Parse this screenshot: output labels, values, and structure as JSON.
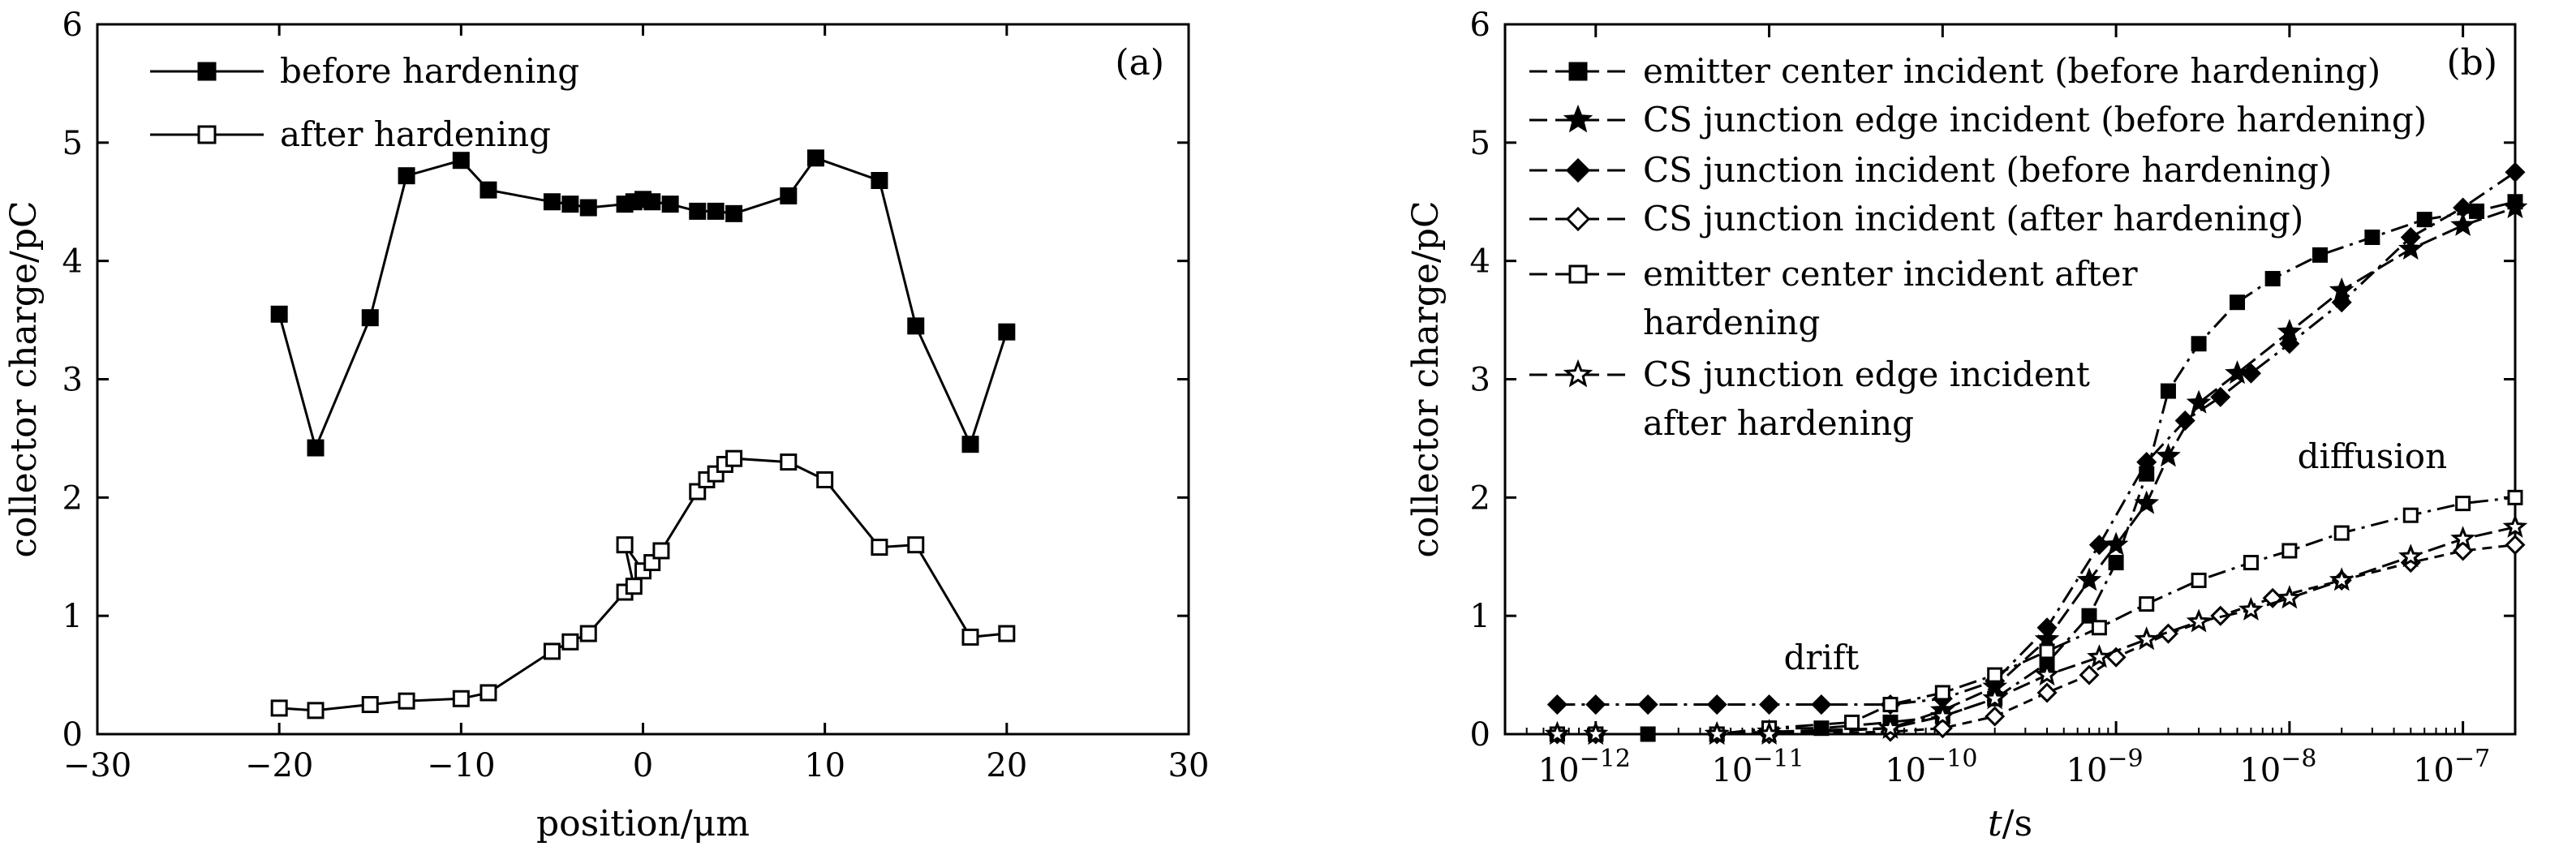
{
  "chart_data": [
    {
      "type": "line",
      "panel_label": "(a)",
      "xlabel": "position/μm",
      "ylabel": "collector charge/pC",
      "xlim": [
        -30,
        30
      ],
      "ylim": [
        0,
        6
      ],
      "xticks": [
        -30,
        -20,
        -10,
        0,
        10,
        20,
        30
      ],
      "xtick_labels": [
        "−30",
        "−20",
        "−10",
        "0",
        "10",
        "20",
        "30"
      ],
      "yticks": [
        0,
        1,
        2,
        3,
        4,
        5,
        6
      ],
      "ytick_labels": [
        "0",
        "1",
        "2",
        "3",
        "4",
        "5",
        "6"
      ],
      "legend_position": "top-left",
      "series": [
        {
          "name": "before hardening",
          "marker": "filled-square",
          "points": [
            [
              -20,
              3.55
            ],
            [
              -18,
              2.42
            ],
            [
              -15,
              3.52
            ],
            [
              -13,
              4.72
            ],
            [
              -10,
              4.85
            ],
            [
              -8.5,
              4.6
            ],
            [
              -5,
              4.5
            ],
            [
              -4,
              4.48
            ],
            [
              -3,
              4.45
            ],
            [
              -1,
              4.48
            ],
            [
              -0.5,
              4.5
            ],
            [
              0,
              4.52
            ],
            [
              0.5,
              4.5
            ],
            [
              1.5,
              4.48
            ],
            [
              3,
              4.42
            ],
            [
              4,
              4.42
            ],
            [
              5,
              4.4
            ],
            [
              8,
              4.55
            ],
            [
              9.5,
              4.87
            ],
            [
              13,
              4.68
            ],
            [
              15,
              3.45
            ],
            [
              18,
              2.45
            ],
            [
              20,
              3.4
            ]
          ]
        },
        {
          "name": "after hardening",
          "marker": "open-square",
          "points": [
            [
              -20,
              0.22
            ],
            [
              -18,
              0.2
            ],
            [
              -15,
              0.25
            ],
            [
              -13,
              0.28
            ],
            [
              -10,
              0.3
            ],
            [
              -8.5,
              0.35
            ],
            [
              -5,
              0.7
            ],
            [
              -4,
              0.78
            ],
            [
              -3,
              0.85
            ],
            [
              -1,
              1.2
            ],
            [
              -0.5,
              1.25
            ],
            [
              -1,
              1.6
            ],
            [
              0,
              1.38
            ],
            [
              0.5,
              1.45
            ],
            [
              1,
              1.55
            ],
            [
              3,
              2.05
            ],
            [
              3.5,
              2.15
            ],
            [
              4,
              2.2
            ],
            [
              4.5,
              2.28
            ],
            [
              5,
              2.33
            ],
            [
              8,
              2.3
            ],
            [
              10,
              2.15
            ],
            [
              13,
              1.58
            ],
            [
              15,
              1.6
            ],
            [
              18,
              0.82
            ],
            [
              20,
              0.85
            ]
          ]
        }
      ]
    },
    {
      "type": "line",
      "panel_label": "(b)",
      "xlabel_italic": "t",
      "xlabel_rest": "/s",
      "ylabel": "collector charge/pC",
      "xscale": "log",
      "xlim": [
        3e-13,
        2e-07
      ],
      "ylim": [
        0,
        6
      ],
      "xtick_exponents": [
        -12,
        -11,
        -10,
        -9,
        -8,
        -7
      ],
      "xtick_base": "10",
      "yticks": [
        0,
        1,
        2,
        3,
        4,
        5,
        6
      ],
      "ytick_labels": [
        "0",
        "1",
        "2",
        "3",
        "4",
        "5",
        "6"
      ],
      "legend_position": "top-left",
      "annotations": [
        {
          "text": "drift",
          "x": 2e-11,
          "y": 0.55
        },
        {
          "text": "diffusion",
          "x": 3e-08,
          "y": 2.25
        }
      ],
      "series": [
        {
          "name": "emitter center incident (before hardening)",
          "marker": "filled-square",
          "points": [
            [
              6e-13,
              0
            ],
            [
              1e-12,
              0
            ],
            [
              2e-12,
              0
            ],
            [
              5e-12,
              0
            ],
            [
              1e-11,
              0.05
            ],
            [
              2e-11,
              0.05
            ],
            [
              5e-11,
              0.1
            ],
            [
              1e-10,
              0.15
            ],
            [
              2e-10,
              0.3
            ],
            [
              4e-10,
              0.6
            ],
            [
              7e-10,
              1.0
            ],
            [
              1e-09,
              1.45
            ],
            [
              1.5e-09,
              2.2
            ],
            [
              2e-09,
              2.9
            ],
            [
              3e-09,
              3.3
            ],
            [
              5e-09,
              3.65
            ],
            [
              8e-09,
              3.85
            ],
            [
              1.5e-08,
              4.05
            ],
            [
              3e-08,
              4.2
            ],
            [
              6e-08,
              4.35
            ],
            [
              1.2e-07,
              4.42
            ],
            [
              2e-07,
              4.5
            ]
          ]
        },
        {
          "name": "CS junction edge incident (before hardening)",
          "marker": "filled-star",
          "points": [
            [
              6e-13,
              0
            ],
            [
              1e-12,
              0
            ],
            [
              5e-12,
              0
            ],
            [
              1e-11,
              0.02
            ],
            [
              5e-11,
              0.05
            ],
            [
              1e-10,
              0.2
            ],
            [
              2e-10,
              0.4
            ],
            [
              4e-10,
              0.8
            ],
            [
              7e-10,
              1.3
            ],
            [
              1e-09,
              1.6
            ],
            [
              1.5e-09,
              1.95
            ],
            [
              2e-09,
              2.35
            ],
            [
              3e-09,
              2.8
            ],
            [
              5e-09,
              3.05
            ],
            [
              1e-08,
              3.4
            ],
            [
              2e-08,
              3.75
            ],
            [
              5e-08,
              4.1
            ],
            [
              1e-07,
              4.3
            ],
            [
              2e-07,
              4.45
            ]
          ]
        },
        {
          "name": "CS junction incident (before hardening)",
          "marker": "filled-diamond",
          "points": [
            [
              6e-13,
              0.25
            ],
            [
              1e-12,
              0.25
            ],
            [
              2e-12,
              0.25
            ],
            [
              5e-12,
              0.25
            ],
            [
              1e-11,
              0.25
            ],
            [
              2e-11,
              0.25
            ],
            [
              5e-11,
              0.25
            ],
            [
              1e-10,
              0.3
            ],
            [
              2e-10,
              0.45
            ],
            [
              4e-10,
              0.9
            ],
            [
              8e-10,
              1.6
            ],
            [
              1.5e-09,
              2.3
            ],
            [
              2.5e-09,
              2.65
            ],
            [
              4e-09,
              2.85
            ],
            [
              6e-09,
              3.05
            ],
            [
              1e-08,
              3.3
            ],
            [
              2e-08,
              3.65
            ],
            [
              5e-08,
              4.2
            ],
            [
              1e-07,
              4.45
            ],
            [
              2e-07,
              4.75
            ]
          ]
        },
        {
          "name": "CS junction incident (after hardening)",
          "marker": "open-diamond",
          "points": [
            [
              6e-13,
              0
            ],
            [
              1e-12,
              0
            ],
            [
              5e-12,
              0
            ],
            [
              1e-11,
              0
            ],
            [
              5e-11,
              0.02
            ],
            [
              1e-10,
              0.05
            ],
            [
              2e-10,
              0.15
            ],
            [
              4e-10,
              0.35
            ],
            [
              7e-10,
              0.5
            ],
            [
              1e-09,
              0.65
            ],
            [
              2e-09,
              0.85
            ],
            [
              4e-09,
              1.0
            ],
            [
              8e-09,
              1.15
            ],
            [
              2e-08,
              1.3
            ],
            [
              5e-08,
              1.45
            ],
            [
              1e-07,
              1.55
            ],
            [
              2e-07,
              1.6
            ]
          ]
        },
        {
          "name": "emitter center incident after hardening",
          "marker": "open-square",
          "points": [
            [
              6e-13,
              0
            ],
            [
              1e-12,
              0
            ],
            [
              5e-12,
              0
            ],
            [
              1e-11,
              0.05
            ],
            [
              3e-11,
              0.1
            ],
            [
              5e-11,
              0.25
            ],
            [
              1e-10,
              0.35
            ],
            [
              2e-10,
              0.5
            ],
            [
              4e-10,
              0.7
            ],
            [
              8e-10,
              0.9
            ],
            [
              1.5e-09,
              1.1
            ],
            [
              3e-09,
              1.3
            ],
            [
              6e-09,
              1.45
            ],
            [
              1e-08,
              1.55
            ],
            [
              2e-08,
              1.7
            ],
            [
              5e-08,
              1.85
            ],
            [
              1e-07,
              1.95
            ],
            [
              2e-07,
              2.0
            ]
          ]
        },
        {
          "name": "CS junction edge incident after hardening",
          "marker": "open-star",
          "points": [
            [
              6e-13,
              0
            ],
            [
              1e-12,
              0
            ],
            [
              5e-12,
              0
            ],
            [
              1e-11,
              0
            ],
            [
              5e-11,
              0.05
            ],
            [
              1e-10,
              0.15
            ],
            [
              2e-10,
              0.3
            ],
            [
              4e-10,
              0.5
            ],
            [
              8e-10,
              0.65
            ],
            [
              1.5e-09,
              0.8
            ],
            [
              3e-09,
              0.95
            ],
            [
              6e-09,
              1.05
            ],
            [
              1e-08,
              1.15
            ],
            [
              2e-08,
              1.3
            ],
            [
              5e-08,
              1.5
            ],
            [
              1e-07,
              1.65
            ],
            [
              2e-07,
              1.75
            ]
          ]
        }
      ]
    }
  ]
}
